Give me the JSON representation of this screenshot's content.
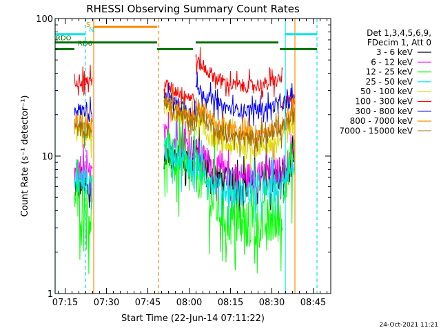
{
  "chart_data": {
    "type": "line",
    "title": "RHESSI Observing Summary Count Rates",
    "xlabel": "Start Time (22-Jun-14 07:11:22)",
    "ylabel": "Count Rate (s⁻¹ detector⁻¹)",
    "yscale": "log",
    "ylim": [
      1,
      100
    ],
    "xlim_minutes": [
      0,
      100
    ],
    "x_tick_labels": [
      "07:15",
      "07:30",
      "07:45",
      "08:00",
      "08:15",
      "08:30",
      "08:45"
    ],
    "x_tick_minutes": [
      3.63,
      18.63,
      33.63,
      48.63,
      63.63,
      78.63,
      93.63
    ],
    "y_tick_labels": [
      "1",
      "10",
      "100"
    ],
    "y_tick_values": [
      1,
      10,
      100
    ],
    "legend_header": [
      "Det 1,3,4,5,6,9,",
      "FDecim 1, Att 0"
    ],
    "legend_position": "right",
    "footer_date": "24-Oct-2021 11:21",
    "flag_labels": [
      {
        "label": "RDO",
        "minute": 0,
        "value": 68
      },
      {
        "label": "RD6",
        "minute": 8,
        "value": 62
      },
      {
        "label": "S",
        "minute": 11,
        "value": 85
      },
      {
        "label": "N",
        "minute": 12,
        "value": 78
      }
    ],
    "flag_bars": [
      {
        "name": "saa",
        "color": "#ff8800",
        "value": 87,
        "segments": [
          [
            14,
            37
          ]
        ]
      },
      {
        "name": "night",
        "color": "#00e5ee",
        "value": 77,
        "segments": [
          [
            0,
            11
          ],
          [
            83.5,
            95
          ]
        ]
      },
      {
        "name": "rd6",
        "color": "#007000",
        "value": 67,
        "segments": [
          [
            0,
            37
          ],
          [
            51,
            81
          ]
        ]
      },
      {
        "name": "rdo",
        "color": "#007000",
        "value": 60,
        "segments": [
          [
            0,
            7
          ],
          [
            37,
            50
          ],
          [
            81.5,
            95
          ]
        ]
      }
    ],
    "vlines": [
      {
        "minute": 0,
        "color": "#00e5ee",
        "dashed": false
      },
      {
        "minute": 11,
        "color": "#00e5ee",
        "dashed": true
      },
      {
        "minute": 14,
        "color": "#ff8800",
        "dashed": false
      },
      {
        "minute": 37.5,
        "color": "#ff8800",
        "dashed": true
      },
      {
        "minute": 83.5,
        "color": "#00e5ee",
        "dashed": false
      },
      {
        "minute": 87,
        "color": "#ff8800",
        "dashed": false
      },
      {
        "minute": 95,
        "color": "#00e5ee",
        "dashed": true
      }
    ],
    "intervals": [
      [
        7,
        13.5
      ],
      [
        39.5,
        51
      ],
      [
        51,
        82.5
      ],
      [
        82.5,
        87
      ]
    ],
    "series": [
      {
        "name": "3 - 6 keV",
        "color": "#000000",
        "noise": 0.1,
        "values": [
          [
            6,
            0.5,
            5.5
          ],
          [
            10,
            0.5,
            9.5
          ],
          [
            10,
            0.5,
            7.0
          ],
          [
            7.5,
            0.5,
            8.5
          ]
        ]
      },
      {
        "name": "6 - 12 keV",
        "color": "#ff00ff",
        "noise": 0.1,
        "values": [
          [
            7.5,
            0.5,
            7.5
          ],
          [
            14,
            0.5,
            11.5
          ],
          [
            11,
            0.5,
            8.0
          ],
          [
            8,
            0.5,
            10.0
          ]
        ]
      },
      {
        "name": "12 - 25 keV",
        "color": "#00ff00",
        "noise": 0.18,
        "values": [
          [
            5.0,
            0.5,
            3.5
          ],
          [
            11,
            0.5,
            7.0
          ],
          [
            8,
            0.5,
            3.5
          ],
          [
            6.5,
            0.5,
            9.5
          ]
        ]
      },
      {
        "name": "25 - 50 keV",
        "color": "#00e5ee",
        "noise": 0.1,
        "values": [
          [
            6.5,
            0.5,
            6.5
          ],
          [
            12,
            0.5,
            8.5
          ],
          [
            8.5,
            0.5,
            6.0
          ],
          [
            7,
            0.5,
            9.0
          ]
        ]
      },
      {
        "name": "50 - 100 keV",
        "color": "#dddd00",
        "noise": 0.08,
        "values": [
          [
            14,
            0.5,
            13.5
          ],
          [
            24,
            0.5,
            17.5
          ],
          [
            17,
            0.5,
            13.0
          ],
          [
            15,
            0.5,
            18.0
          ]
        ]
      },
      {
        "name": "100 - 300 keV",
        "color": "#ff0000",
        "noise": 0.05,
        "values": [
          [
            36,
            0.5,
            35.0
          ],
          [
            34,
            0.5,
            26.0
          ],
          [
            50,
            0.5,
            36.0
          ],
          [
            24,
            0.5,
            26.0
          ]
        ]
      },
      {
        "name": "300 - 800 keV",
        "color": "#0000ff",
        "noise": 0.05,
        "values": [
          [
            22,
            0.5,
            21.0
          ],
          [
            29,
            0.5,
            20.0
          ],
          [
            32,
            0.5,
            24.0
          ],
          [
            22,
            0.5,
            27.0
          ]
        ]
      },
      {
        "name": "800 - 7000 keV",
        "color": "#ff8800",
        "noise": 0.06,
        "values": [
          [
            18,
            0.5,
            17.0
          ],
          [
            27,
            0.5,
            19.0
          ],
          [
            24,
            0.5,
            16.5
          ],
          [
            17,
            0.5,
            22.0
          ]
        ]
      },
      {
        "name": "7000 - 15000 keV",
        "color": "#a0700a",
        "noise": 0.06,
        "values": [
          [
            16,
            0.5,
            15.0
          ],
          [
            25,
            0.5,
            17.0
          ],
          [
            21,
            0.5,
            15.0
          ],
          [
            16,
            0.5,
            20.0
          ]
        ]
      }
    ]
  }
}
